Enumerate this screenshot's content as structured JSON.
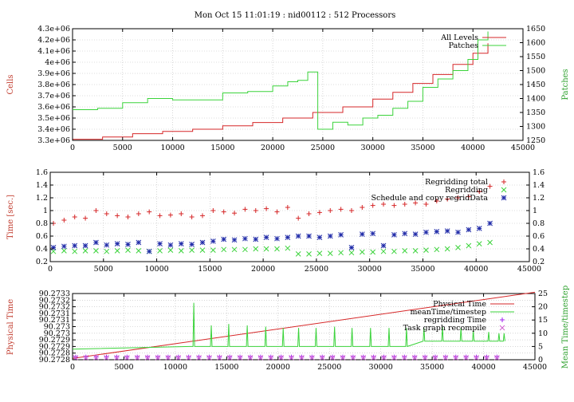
{
  "title": "Mon Oct 15 11:01:19 : nid00112 : 512 Processors",
  "colors": {
    "red": "#d62728",
    "green": "#3bd33b",
    "blue": "#1f2aa8",
    "purple": "#a020f0",
    "magenta": "#d060d0"
  },
  "chart_data": [
    {
      "type": "line",
      "ylabel": "Cells",
      "y2label": "Patches",
      "xlim": [
        0,
        45000
      ],
      "ylim": [
        3300000,
        4300000
      ],
      "y2lim": [
        1250,
        1650
      ],
      "xticks": [
        "0",
        "5000",
        "10000",
        "15000",
        "20000",
        "25000",
        "30000",
        "35000",
        "40000",
        "45000"
      ],
      "yticks": [
        "3.3e+06",
        "3.4e+06",
        "3.5e+06",
        "3.6e+06",
        "3.7e+06",
        "3.8e+06",
        "3.9e+06",
        "4e+06",
        "4.1e+06",
        "4.2e+06",
        "4.3e+06"
      ],
      "y2ticks": [
        "1250",
        "1300",
        "1350",
        "1400",
        "1450",
        "1500",
        "1550",
        "1600",
        "1650"
      ],
      "legend_position": "top-right",
      "series": [
        {
          "name": "All Levels",
          "axis": "left",
          "color": "red",
          "x": [
            0,
            3000,
            6000,
            9000,
            12000,
            15000,
            18000,
            21000,
            24000,
            27000,
            30000,
            32000,
            34000,
            36000,
            38000,
            40000,
            41500
          ],
          "y": [
            3310000,
            3330000,
            3360000,
            3380000,
            3400000,
            3430000,
            3460000,
            3500000,
            3550000,
            3600000,
            3670000,
            3730000,
            3810000,
            3890000,
            3980000,
            4080000,
            4170000
          ]
        },
        {
          "name": "Patches",
          "axis": "right",
          "color": "green",
          "x": [
            0,
            2500,
            5000,
            7500,
            10000,
            12500,
            15000,
            17500,
            20000,
            21500,
            22500,
            23500,
            24500,
            26000,
            27500,
            29000,
            30500,
            32000,
            33500,
            35000,
            36500,
            38000,
            39500,
            40500,
            41500
          ],
          "y": [
            1360,
            1365,
            1385,
            1400,
            1395,
            1395,
            1420,
            1425,
            1445,
            1460,
            1465,
            1495,
            1290,
            1315,
            1305,
            1330,
            1340,
            1365,
            1390,
            1440,
            1470,
            1500,
            1540,
            1610,
            1640
          ]
        }
      ]
    },
    {
      "type": "scatter",
      "ylabel": "Time [sec.]",
      "xlim": [
        0,
        45000
      ],
      "ylim": [
        0.2,
        1.6
      ],
      "xticks": [
        "0",
        "5000",
        "10000",
        "15000",
        "20000",
        "25000",
        "30000",
        "35000",
        "40000",
        "45000"
      ],
      "yticks": [
        "0.2",
        "0.4",
        "0.6",
        "0.8",
        "1",
        "1.2",
        "1.4",
        "1.6"
      ],
      "y2ticks": [
        "0.2",
        "0.4",
        "0.6",
        "0.8",
        "1",
        "1.2",
        "1.4",
        "1.6"
      ],
      "legend_position": "top-right",
      "series": [
        {
          "name": "Regridding total",
          "marker": "+",
          "color": "red",
          "x": [
            300,
            1300,
            2300,
            3300,
            4300,
            5300,
            6300,
            7300,
            8300,
            9300,
            10300,
            11300,
            12300,
            13300,
            14300,
            15300,
            16300,
            17300,
            18300,
            19300,
            20300,
            21300,
            22300,
            23300,
            24300,
            25300,
            26300,
            27300,
            28300,
            29300,
            30300,
            31300,
            32300,
            33300,
            34300,
            35300,
            36300,
            37300,
            38300,
            39300,
            40300,
            41300
          ],
          "y": [
            0.8,
            0.85,
            0.9,
            0.88,
            1.0,
            0.95,
            0.92,
            0.9,
            0.95,
            0.98,
            0.92,
            0.93,
            0.95,
            0.9,
            0.92,
            1.0,
            0.98,
            0.96,
            1.02,
            1.0,
            1.03,
            0.98,
            1.05,
            0.88,
            0.95,
            0.97,
            1.0,
            1.02,
            1.0,
            1.05,
            1.08,
            1.1,
            1.08,
            1.1,
            1.12,
            1.1,
            1.15,
            1.18,
            1.2,
            1.22,
            1.3,
            1.38
          ]
        },
        {
          "name": "Regridding",
          "marker": "x",
          "color": "green",
          "x": [
            300,
            1300,
            2300,
            3300,
            4300,
            5300,
            6300,
            7300,
            8300,
            9300,
            10300,
            11300,
            12300,
            13300,
            14300,
            15300,
            16300,
            17300,
            18300,
            19300,
            20300,
            21300,
            22300,
            23300,
            24300,
            25300,
            26300,
            27300,
            28300,
            29300,
            30300,
            31300,
            32300,
            33300,
            34300,
            35300,
            36300,
            37300,
            38300,
            39300,
            40300,
            41300
          ],
          "y": [
            0.36,
            0.37,
            0.36,
            0.37,
            0.37,
            0.36,
            0.37,
            0.38,
            0.37,
            0.36,
            0.37,
            0.38,
            0.37,
            0.38,
            0.38,
            0.38,
            0.39,
            0.39,
            0.39,
            0.4,
            0.4,
            0.4,
            0.41,
            0.32,
            0.32,
            0.33,
            0.33,
            0.34,
            0.34,
            0.35,
            0.35,
            0.36,
            0.36,
            0.37,
            0.37,
            0.38,
            0.39,
            0.4,
            0.42,
            0.45,
            0.48,
            0.5
          ]
        },
        {
          "name": "Schedule and copy regridData",
          "marker": "*",
          "color": "blue",
          "x": [
            300,
            1300,
            2300,
            3300,
            4300,
            5300,
            6300,
            7300,
            8300,
            9300,
            10300,
            11300,
            12300,
            13300,
            14300,
            15300,
            16300,
            17300,
            18300,
            19300,
            20300,
            21300,
            22300,
            23300,
            24300,
            25300,
            26300,
            27300,
            28300,
            29300,
            30300,
            31300,
            32300,
            33300,
            34300,
            35300,
            36300,
            37300,
            38300,
            39300,
            40300,
            41300
          ],
          "y": [
            0.42,
            0.44,
            0.45,
            0.45,
            0.5,
            0.46,
            0.48,
            0.47,
            0.5,
            0.36,
            0.48,
            0.46,
            0.48,
            0.47,
            0.5,
            0.52,
            0.55,
            0.54,
            0.56,
            0.55,
            0.58,
            0.56,
            0.58,
            0.6,
            0.6,
            0.58,
            0.6,
            0.62,
            0.42,
            0.63,
            0.64,
            0.45,
            0.62,
            0.64,
            0.63,
            0.66,
            0.67,
            0.68,
            0.66,
            0.7,
            0.72,
            0.8
          ]
        }
      ]
    },
    {
      "type": "line",
      "ylabel": "Physical Time",
      "y2label": "Mean Time/timestep",
      "xlim": [
        0,
        45000
      ],
      "ylim": [
        90.2728,
        90.2733
      ],
      "y2lim": [
        0,
        25
      ],
      "xticks": [
        "0",
        "5000",
        "10000",
        "15000",
        "20000",
        "25000",
        "30000",
        "35000",
        "40000",
        "45000"
      ],
      "yticks": [
        "90.2728",
        "90.2728",
        "90.2729",
        "90.2729",
        "90.273",
        "90.273",
        "90.2731",
        "90.2731",
        "90.2732",
        "90.2732",
        "90.2733"
      ],
      "y2ticks": [
        "0",
        "5",
        "10",
        "15",
        "20",
        "25"
      ],
      "legend_position": "top-right",
      "series": [
        {
          "name": "Physical Time",
          "axis": "left",
          "color": "red",
          "x": [
            0,
            45000
          ],
          "y": [
            90.27281,
            90.27331
          ]
        },
        {
          "name": "meanTime/timestep",
          "axis": "right",
          "color": "green",
          "x": [
            0,
            11500,
            11800,
            12000,
            13500,
            15200,
            17000,
            18800,
            20500,
            22000,
            23700,
            25500,
            27200,
            29000,
            30800,
            32500,
            34200,
            36000,
            37800,
            39000,
            40500,
            41500,
            42000
          ],
          "y": [
            4,
            5,
            21.5,
            5,
            13,
            13.5,
            13,
            12.5,
            12,
            12,
            12,
            12.5,
            12,
            12,
            12,
            12,
            12,
            12.5,
            12,
            11,
            10.5,
            10,
            10
          ],
          "base": 5
        },
        {
          "name": "regridding Time",
          "axis": "right",
          "marker": "+",
          "color": "purple",
          "x": [
            300,
            1300,
            2300,
            3300,
            4300,
            5300,
            6300,
            7300,
            8300,
            9300,
            10300,
            11300,
            12300,
            13300,
            14300,
            15300,
            16300,
            17300,
            18300,
            19300,
            20300,
            21300,
            22300,
            23300,
            24300,
            25300,
            26300,
            27300,
            28300,
            29300,
            30300,
            31300,
            32300,
            33300,
            34300,
            35300,
            36300,
            37300,
            38300,
            39300,
            40300,
            41300
          ],
          "y": [
            1,
            1,
            1,
            1,
            1,
            1,
            1,
            1,
            1,
            1,
            1,
            1,
            1,
            1,
            1,
            1,
            1,
            1,
            1,
            1,
            1,
            1,
            1,
            1,
            1,
            1,
            1,
            1,
            1,
            1,
            1,
            1,
            1,
            1,
            1,
            1,
            1,
            1,
            1,
            1,
            1,
            1
          ]
        },
        {
          "name": "Task graph recompile",
          "axis": "right",
          "marker": "x",
          "color": "magenta",
          "x": [
            300,
            1300,
            2300,
            3300,
            4300,
            5300,
            6300,
            7300,
            8300,
            9300,
            10300,
            11300,
            12300,
            13300,
            14300,
            15300,
            16300,
            17300,
            18300,
            19300,
            20300,
            21300,
            22300,
            23300,
            24300,
            25300,
            26300,
            27300,
            28300,
            29300,
            30300,
            31300,
            32300,
            33300,
            34300,
            35300,
            36300,
            37300,
            38300,
            39300,
            40300,
            41300
          ],
          "y": [
            0.8,
            0.8,
            0.8,
            0.8,
            0.8,
            0.8,
            0.8,
            0.8,
            0.8,
            0.8,
            0.8,
            0.8,
            0.8,
            0.8,
            0.8,
            0.8,
            0.8,
            0.8,
            0.8,
            0.8,
            0.8,
            0.8,
            0.8,
            0.8,
            0.8,
            0.8,
            0.8,
            0.8,
            0.8,
            0.8,
            0.8,
            0.8,
            0.8,
            0.8,
            0.8,
            0.8,
            0.8,
            0.8,
            0.8,
            0.8,
            0.8,
            0.8
          ]
        }
      ]
    }
  ]
}
